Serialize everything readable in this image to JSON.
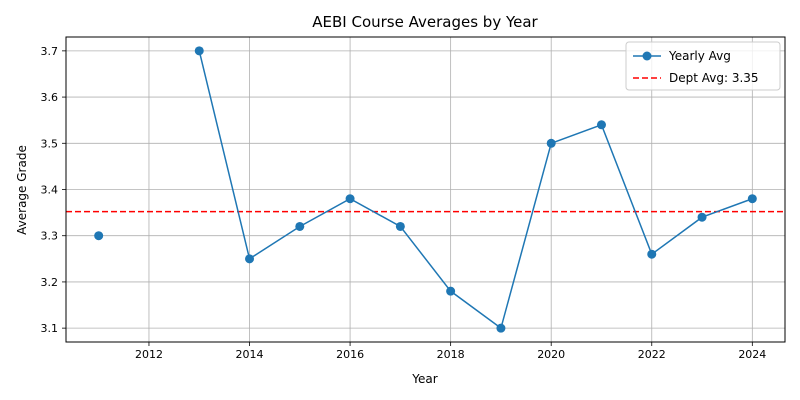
{
  "chart_data": {
    "type": "line",
    "title": "AEBI Course Averages by Year",
    "xlabel": "Year",
    "ylabel": "Average Grade",
    "xlim": [
      2010.35,
      2024.65
    ],
    "ylim": [
      3.07,
      3.73
    ],
    "xticks": [
      2012,
      2014,
      2016,
      2018,
      2020,
      2022,
      2024
    ],
    "yticks": [
      3.1,
      3.2,
      3.3,
      3.4,
      3.5,
      3.6,
      3.7
    ],
    "grid": true,
    "legend_position": "top-right",
    "series": [
      {
        "name": "Yearly Avg",
        "color": "#1f77b4",
        "marker": "circle",
        "x": [
          2011,
          2013,
          2014,
          2015,
          2016,
          2017,
          2018,
          2019,
          2020,
          2021,
          2022,
          2023,
          2024
        ],
        "y": [
          3.3,
          3.7,
          3.25,
          3.32,
          3.38,
          3.32,
          3.18,
          3.1,
          3.5,
          3.54,
          3.26,
          3.34,
          3.38
        ],
        "segments": [
          [
            0,
            0
          ],
          [
            1,
            12
          ]
        ]
      }
    ],
    "reference_lines": [
      {
        "name": "Dept Avg: 3.35",
        "value": 3.352,
        "color": "#ff0000",
        "style": "dashed"
      }
    ]
  }
}
